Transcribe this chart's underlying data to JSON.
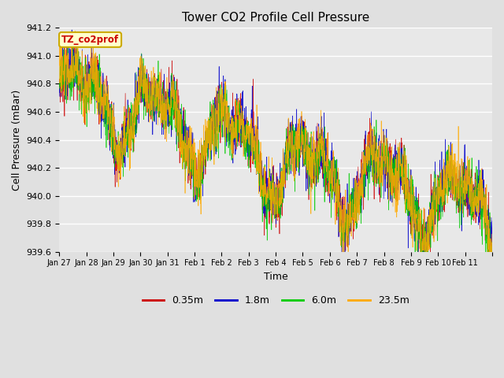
{
  "title": "Tower CO2 Profile Cell Pressure",
  "xlabel": "Time",
  "ylabel": "Cell Pressure (mBar)",
  "ylim": [
    939.6,
    941.2
  ],
  "yticks": [
    939.6,
    939.8,
    940.0,
    940.2,
    940.4,
    940.6,
    940.8,
    941.0,
    941.2
  ],
  "xtick_labels": [
    "Jan 27",
    "Jan 28",
    "Jan 29",
    "Jan 30",
    "Jan 31",
    "Feb 1",
    "Feb 2",
    "Feb 3",
    "Feb 4",
    "Feb 5",
    "Feb 6",
    "Feb 7",
    "Feb 8",
    "Feb 9",
    "Feb 10",
    "Feb 11"
  ],
  "series": [
    "0.35m",
    "1.8m",
    "6.0m",
    "23.5m"
  ],
  "colors": [
    "#cc0000",
    "#0000cc",
    "#00cc00",
    "#ffaa00"
  ],
  "legend_label": "TZ_co2prof",
  "fig_bg": "#e0e0e0",
  "plot_bg": "#e8e8e8",
  "grid_color": "#ffffff",
  "n_points": 2000,
  "seed": 42,
  "figsize": [
    6.4,
    4.8
  ],
  "dpi": 100
}
